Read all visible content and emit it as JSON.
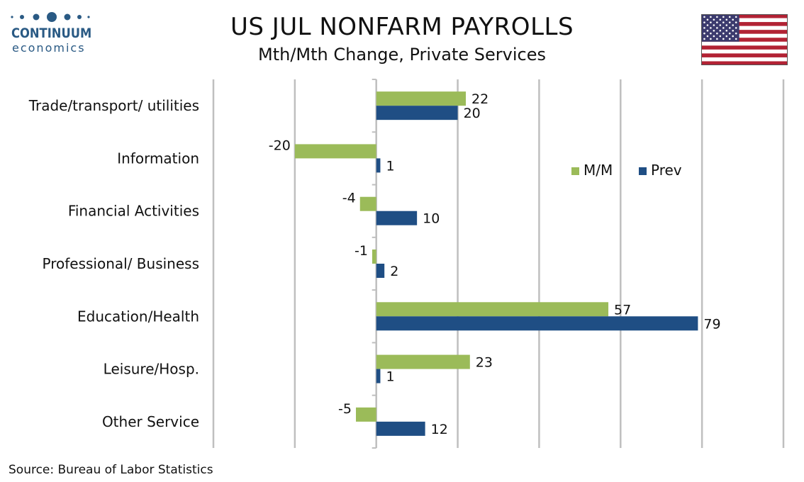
{
  "header": {
    "logo_name": "CONTINUUM",
    "logo_sub": "economics",
    "title": "US JUL NONFARM PAYROLLS",
    "subtitle": "Mth/Mth Change, Private Services"
  },
  "footer": {
    "source": "Source: Bureau of Labor Statistics"
  },
  "colors": {
    "mm": "#9bbb59",
    "prev": "#1f4e84",
    "grid": "#bfbfbf",
    "brand": "#2a5a84",
    "flag_red": "#b22234",
    "flag_blue": "#3c3b6e"
  },
  "chart_data": {
    "type": "bar",
    "orientation": "horizontal",
    "title": "US JUL NONFARM PAYROLLS",
    "subtitle": "Mth/Mth Change, Private Services",
    "categories": [
      "Trade/transport/ utilities",
      "Information",
      "Financial Activities",
      "Professional/ Business",
      "Education/Health",
      "Leisure/Hosp.",
      "Other Service"
    ],
    "series": [
      {
        "name": "M/M",
        "color": "#9bbb59",
        "values": [
          22,
          -20,
          -4,
          -1,
          57,
          23,
          -5
        ]
      },
      {
        "name": "Prev",
        "color": "#1f4e84",
        "values": [
          20,
          1,
          10,
          2,
          79,
          1,
          12
        ]
      }
    ],
    "xlim": [
      -40,
      100
    ],
    "grid": true,
    "data_labels": true,
    "legend_position": "upper-right inside plot"
  }
}
